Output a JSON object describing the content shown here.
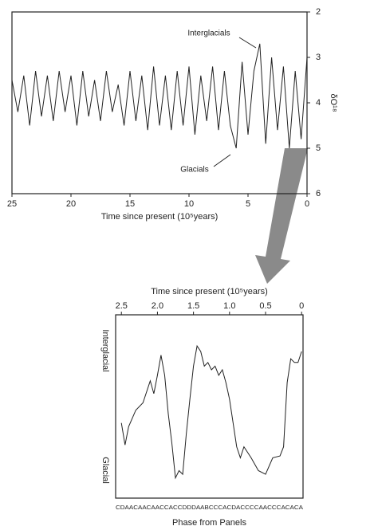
{
  "chart_data": [
    {
      "type": "line",
      "xlabel": "Time since present (10⁵years)",
      "ylabel": "δO¹⁸",
      "annotations": [
        "Interglacials",
        "Glacials"
      ],
      "x": [
        25,
        24.5,
        24,
        23.5,
        23,
        22.5,
        22,
        21.5,
        21,
        20.5,
        20,
        19.5,
        19,
        18.5,
        18,
        17.5,
        17,
        16.5,
        16,
        15.5,
        15,
        14.5,
        14,
        13.5,
        13,
        12.5,
        12,
        11.5,
        11,
        10.5,
        10,
        9.5,
        9,
        8.5,
        8,
        7.5,
        7,
        6.5,
        6,
        5.5,
        5,
        4.5,
        4,
        3.5,
        3,
        2.5,
        2,
        1.5,
        1,
        0.5,
        0
      ],
      "values": [
        3.5,
        4.2,
        3.4,
        4.5,
        3.3,
        4.3,
        3.4,
        4.4,
        3.3,
        4.2,
        3.4,
        4.5,
        3.3,
        4.3,
        3.5,
        4.4,
        3.3,
        4.2,
        3.6,
        4.5,
        3.3,
        4.4,
        3.4,
        4.6,
        3.2,
        4.5,
        3.4,
        4.6,
        3.3,
        4.5,
        3.2,
        4.7,
        3.4,
        4.4,
        3.2,
        4.6,
        3.3,
        4.5,
        5.0,
        3.1,
        4.7,
        3.3,
        2.7,
        4.9,
        3.0,
        4.6,
        3.2,
        5.0,
        3.3,
        4.8,
        3.0
      ],
      "color": "#222222",
      "xlim": [
        25,
        0
      ],
      "xticks": [
        25,
        20,
        15,
        10,
        5,
        0
      ],
      "ylim": [
        6,
        2
      ],
      "yticks": [
        2,
        3,
        4,
        5,
        6
      ],
      "xaxis_position": "bottom",
      "yaxis_position": "right"
    },
    {
      "type": "line",
      "xlabel": "Time since present (10⁵years)",
      "y_labels": {
        "top": "Interglacial",
        "bottom": "Glacial"
      },
      "phase_labels": "CDAACAACAACCACCDDDAABCCCACDACCCCAACCCACACA",
      "phase_title": "Phase from Panels",
      "x": [
        2.5,
        2.45,
        2.4,
        2.3,
        2.2,
        2.1,
        2.05,
        2.0,
        1.95,
        1.9,
        1.85,
        1.8,
        1.75,
        1.7,
        1.65,
        1.6,
        1.55,
        1.5,
        1.45,
        1.4,
        1.35,
        1.3,
        1.25,
        1.2,
        1.15,
        1.1,
        1.05,
        1.0,
        0.95,
        0.9,
        0.85,
        0.8,
        0.7,
        0.6,
        0.5,
        0.4,
        0.3,
        0.25,
        0.2,
        0.15,
        0.1,
        0.05,
        0
      ],
      "values": [
        0.41,
        0.29,
        0.39,
        0.48,
        0.52,
        0.64,
        0.57,
        0.67,
        0.78,
        0.67,
        0.46,
        0.3,
        0.11,
        0.15,
        0.13,
        0.35,
        0.54,
        0.72,
        0.83,
        0.8,
        0.72,
        0.74,
        0.7,
        0.72,
        0.67,
        0.7,
        0.63,
        0.54,
        0.41,
        0.28,
        0.22,
        0.28,
        0.22,
        0.15,
        0.13,
        0.22,
        0.23,
        0.28,
        0.63,
        0.76,
        0.74,
        0.74,
        0.8
      ],
      "color": "#222222",
      "xlim": [
        2.58,
        -0.02
      ],
      "xticks": [
        2.5,
        {
          "value": 2,
          "label": "2.0"
        },
        1.5,
        {
          "value": 1,
          "label": "1.0"
        },
        0.5,
        0
      ],
      "ylim": [
        0,
        1
      ],
      "xaxis_position": "top"
    }
  ]
}
